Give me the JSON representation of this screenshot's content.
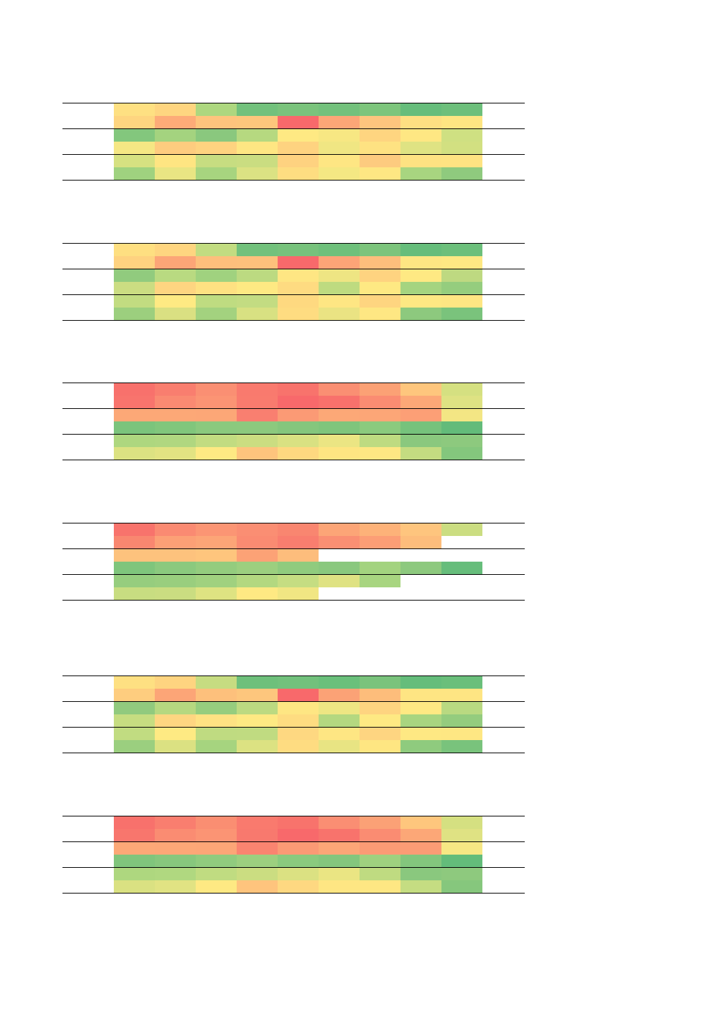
{
  "tables": [
    {
      "rows": [
        [
          "#fee082",
          "#fed580",
          "#add77f",
          "#72c17c",
          "#7ac37c",
          "#73c17c",
          "#7dc57c",
          "#66bd7b",
          "#6dbf7b"
        ],
        [
          "#fed580",
          "#fdab78",
          "#fec47d",
          "#fdc67c",
          "#f8696b",
          "#fca677",
          "#fec57e",
          "#fedf82",
          "#fee582"
        ],
        [
          "#83c77d",
          "#a4d37f",
          "#8ac87e",
          "#b6d980",
          "#fee983",
          "#f7e783",
          "#fed580",
          "#fee783",
          "#cfe082"
        ],
        [
          "#f5e784",
          "#fecc7f",
          "#fed380",
          "#fee683",
          "#fed380",
          "#f0e683",
          "#fee282",
          "#dfe383",
          "#d2e081"
        ],
        [
          "#d6e181",
          "#fee582",
          "#c7dd81",
          "#cadd81",
          "#fed280",
          "#fee683",
          "#fdcb7f",
          "#fee282",
          "#fee382"
        ],
        [
          "#9fd27f",
          "#e9e583",
          "#a7d47f",
          "#dbe283",
          "#fedd81",
          "#f4e883",
          "#fee783",
          "#a8d580",
          "#8fca7e"
        ]
      ]
    },
    {
      "rows": [
        [
          "#fedf81",
          "#fed580",
          "#c2dc81",
          "#72c17c",
          "#77c27c",
          "#6ec07b",
          "#7cc47c",
          "#66bd7b",
          "#6cbf7b"
        ],
        [
          "#fed280",
          "#fca577",
          "#fdbf7c",
          "#fdc07c",
          "#f8696b",
          "#fca477",
          "#fdbe7c",
          "#fee683",
          "#fee883"
        ],
        [
          "#91cb7e",
          "#b9da81",
          "#a0d27f",
          "#bcda81",
          "#fee683",
          "#eee583",
          "#fed380",
          "#fee983",
          "#bed981"
        ],
        [
          "#cbdd82",
          "#fed581",
          "#fee182",
          "#fee983",
          "#fedb81",
          "#bedb80",
          "#fee983",
          "#a5d480",
          "#95cd7e"
        ],
        [
          "#c2dc81",
          "#feea83",
          "#bfdc81",
          "#c3dc82",
          "#fed980",
          "#fee683",
          "#fed580",
          "#fee883",
          "#fee683"
        ],
        [
          "#9ccf7e",
          "#dae082",
          "#a3d27f",
          "#d8e182",
          "#fedc81",
          "#eae383",
          "#fee783",
          "#8dc97e",
          "#7ac37c"
        ]
      ]
    },
    {
      "rows": [
        [
          "#f8716c",
          "#f97e6f",
          "#fa8f73",
          "#f97a6e",
          "#f8736c",
          "#fa8f73",
          "#fba175",
          "#fec67d",
          "#d5e081"
        ],
        [
          "#f8746d",
          "#fa8a72",
          "#fb9474",
          "#f97b6e",
          "#f8696b",
          "#f8716c",
          "#fa8c72",
          "#fca877",
          "#dee283"
        ],
        [
          "#fca877",
          "#fca877",
          "#fca777",
          "#f97f70",
          "#fb9a75",
          "#fca877",
          "#fca677",
          "#fc9f76",
          "#f3e684"
        ],
        [
          "#7bc47c",
          "#81c67c",
          "#8bc97e",
          "#8cc97e",
          "#85c67d",
          "#7fc57c",
          "#8bca7e",
          "#76c27c",
          "#63bb7a"
        ],
        [
          "#aed77f",
          "#b0d780",
          "#c2dc81",
          "#cbdd81",
          "#d9e182",
          "#ebe583",
          "#bedb81",
          "#8ac87e",
          "#8dc97e"
        ],
        [
          "#dce282",
          "#e2e382",
          "#fee983",
          "#fec47d",
          "#fed880",
          "#fee582",
          "#fee783",
          "#c4dc81",
          "#84c77d"
        ]
      ]
    },
    {
      "rows": [
        [
          "#f8736c",
          "#fa8a72",
          "#fb9574",
          "#fa8e73",
          "#f98670",
          "#fca577",
          "#fdb279",
          "#fec57e",
          "#cbdd81",
          ""
        ],
        [
          "#f98770",
          "#fca076",
          "#fca577",
          "#fa8b72",
          "#f97e6f",
          "#fa8f73",
          "#fc9e76",
          "#fdbd7c",
          "",
          ""
        ],
        [
          "#fdc27d",
          "#fdc27d",
          "#fec57d",
          "#fca276",
          "#fdbd7c",
          "",
          "",
          "",
          "",
          ""
        ],
        [
          "#7fc57c",
          "#8bc97e",
          "#94cc7e",
          "#9ccf7f",
          "#90cb7e",
          "#8ac87e",
          "#a3d37f",
          "#8dc97e",
          "#66bd7b",
          ""
        ],
        [
          "#96cd7e",
          "#99ce7e",
          "#a0d17f",
          "#b3d880",
          "#c5dd82",
          "#dfe283",
          "#a8d580",
          "",
          "",
          ""
        ],
        [
          "#c8dd81",
          "#cadd81",
          "#dee382",
          "#fee983",
          "#f1e683",
          "",
          "",
          "",
          "",
          ""
        ]
      ]
    },
    {
      "rows": [
        [
          "#fee082",
          "#fed480",
          "#c6dc81",
          "#6ec07b",
          "#72c17c",
          "#6ac07b",
          "#7ac37c",
          "#65bd7b",
          "#6abf7b"
        ],
        [
          "#fecd7f",
          "#fca577",
          "#fdc07c",
          "#fdc67d",
          "#f8696b",
          "#fba276",
          "#fdbd7b",
          "#fee583",
          "#fee583"
        ],
        [
          "#91ca7e",
          "#b6d880",
          "#96cd7e",
          "#bcda81",
          "#fee683",
          "#eee683",
          "#fed480",
          "#fee983",
          "#b9d981"
        ],
        [
          "#c6dd81",
          "#fed681",
          "#fee283",
          "#fee983",
          "#fedc81",
          "#b4d880",
          "#fee983",
          "#a8d580",
          "#94cc7e"
        ],
        [
          "#c1dc81",
          "#feea83",
          "#bfdb81",
          "#c0db81",
          "#fed881",
          "#fee683",
          "#fed581",
          "#fee883",
          "#fee783"
        ],
        [
          "#9bcf7f",
          "#dbe182",
          "#a6d47f",
          "#dce282",
          "#fedc81",
          "#e8e483",
          "#fee682",
          "#8fcb7e",
          "#79c37c"
        ]
      ]
    },
    {
      "rows": [
        [
          "#f8716c",
          "#f97e6f",
          "#fa8e72",
          "#f97a6e",
          "#f8736c",
          "#fa8e73",
          "#fba176",
          "#fec67d",
          "#d5e081"
        ],
        [
          "#f8766d",
          "#fa8c72",
          "#fb9474",
          "#f8796e",
          "#f8696b",
          "#f8736c",
          "#fa8c72",
          "#fca777",
          "#dfe283"
        ],
        [
          "#fca877",
          "#fca777",
          "#fca677",
          "#fa8470",
          "#fb9a75",
          "#fca677",
          "#fb9b75",
          "#fb9c75",
          "#f6e784"
        ],
        [
          "#80c57c",
          "#87c77d",
          "#90cb7e",
          "#9ccf7f",
          "#8aca7e",
          "#84c67d",
          "#9fd17f",
          "#83c67d",
          "#63bc7a"
        ],
        [
          "#aed77f",
          "#b0d880",
          "#c0dc81",
          "#cbdd81",
          "#dbe182",
          "#eae583",
          "#bfdb81",
          "#8ac87e",
          "#8ec97e"
        ],
        [
          "#dae182",
          "#e1e383",
          "#fee983",
          "#fec47d",
          "#fed881",
          "#fee683",
          "#fee783",
          "#c5dd82",
          "#86c77d"
        ]
      ]
    }
  ]
}
